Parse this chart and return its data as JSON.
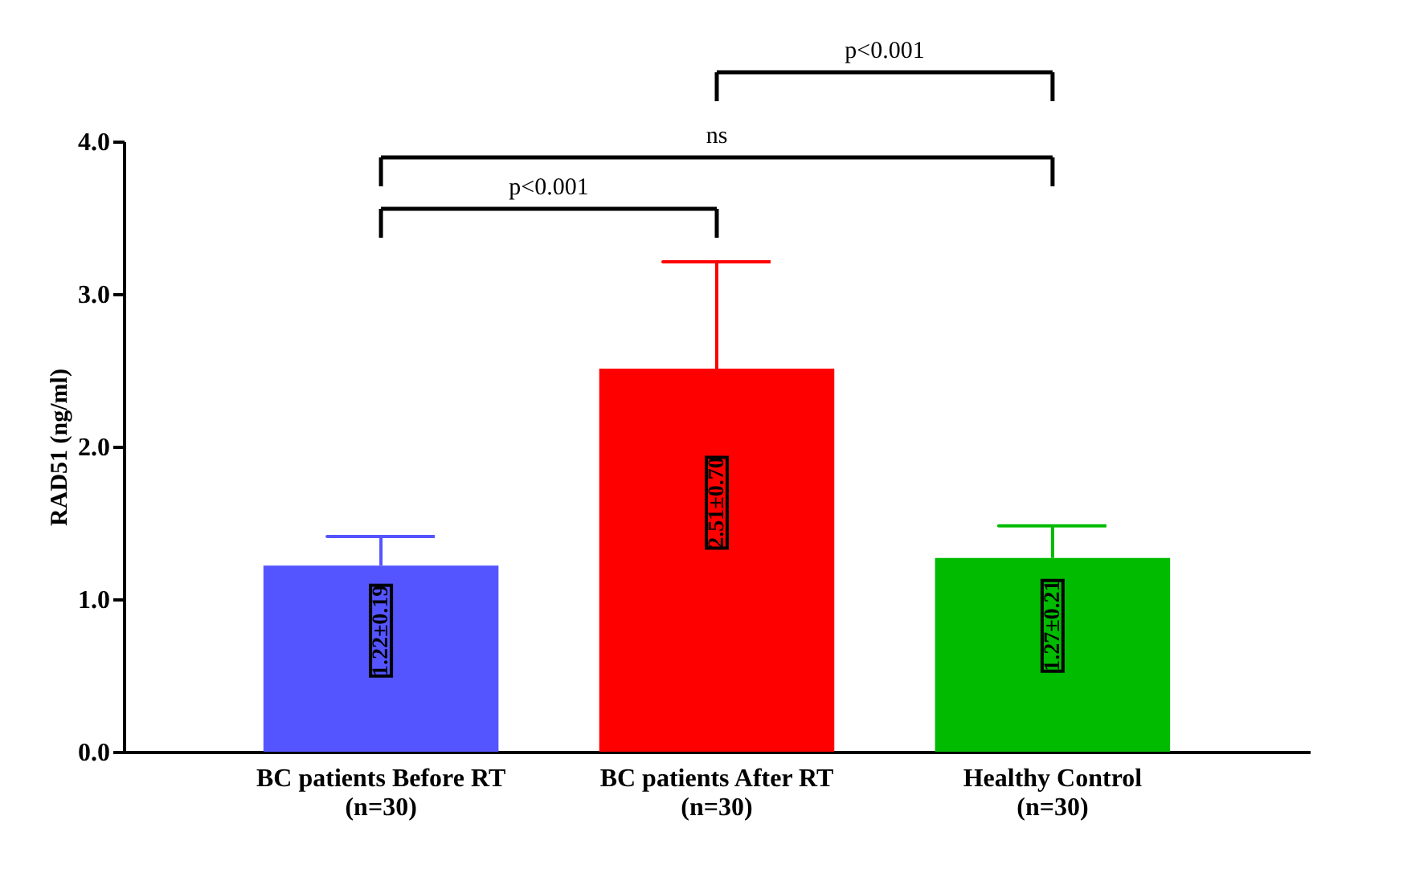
{
  "chart_data": {
    "type": "bar",
    "ylabel": "RAD51 (ng/ml)",
    "categories": [
      "BC patients Before RT\n(n=30)",
      "BC patients After RT\n(n=30)",
      "Healthy Control\n(n=30)"
    ],
    "values": [
      1.22,
      2.51,
      1.27
    ],
    "colors": [
      "#5555ff",
      "#ff0000",
      "#00bb00"
    ],
    "errors": [
      [
        1.22,
        1.41
      ],
      [
        2.51,
        3.21
      ],
      [
        1.27,
        1.48
      ]
    ],
    "value_labels": [
      "1.22±0.19",
      "2.51±0.70",
      "1.27±0.21"
    ],
    "ylim": [
      0,
      4
    ],
    "yticks": [
      {
        "value": 0,
        "label": "0.0"
      },
      {
        "value": 1,
        "label": "1.0"
      },
      {
        "value": 2,
        "label": "2.0"
      },
      {
        "value": 3,
        "label": "3.0"
      },
      {
        "value": 4,
        "label": "4.0"
      }
    ],
    "annotations": [
      "p<0.001",
      "ns",
      "p<0.001"
    ],
    "grid": false,
    "legend": false
  }
}
